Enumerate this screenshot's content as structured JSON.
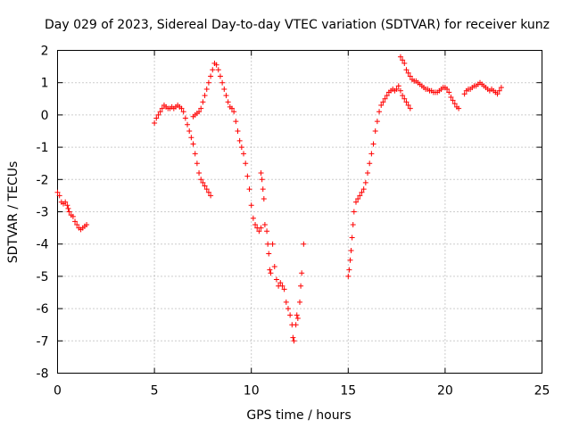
{
  "chart_data": {
    "type": "scatter",
    "title": "Day 029 of 2023, Sidereal Day-to-day VTEC variation (SDTVAR) for receiver kunz",
    "xlabel": "GPS time / hours",
    "ylabel": "SDTVAR / TECUs",
    "xlim": [
      0,
      25
    ],
    "ylim": [
      -8,
      2
    ],
    "xticks": [
      0,
      5,
      10,
      15,
      20,
      25
    ],
    "yticks": [
      -8,
      -7,
      -6,
      -5,
      -4,
      -3,
      -2,
      -1,
      0,
      1,
      2
    ],
    "grid": true,
    "marker": "plus",
    "color": "#ff0000",
    "series": [
      {
        "points": [
          [
            0.0,
            -2.4
          ],
          [
            0.1,
            -2.5
          ],
          [
            0.2,
            -2.7
          ],
          [
            0.3,
            -2.75
          ],
          [
            0.4,
            -2.7
          ],
          [
            0.5,
            -2.8
          ],
          [
            0.55,
            -2.9
          ],
          [
            0.6,
            -3.0
          ],
          [
            0.7,
            -3.1
          ],
          [
            0.8,
            -3.15
          ],
          [
            0.9,
            -3.3
          ],
          [
            1.0,
            -3.4
          ],
          [
            1.1,
            -3.5
          ],
          [
            1.2,
            -3.55
          ],
          [
            1.3,
            -3.5
          ],
          [
            1.4,
            -3.45
          ],
          [
            1.5,
            -3.4
          ],
          [
            5.0,
            -0.25
          ],
          [
            5.1,
            -0.1
          ],
          [
            5.2,
            0.0
          ],
          [
            5.3,
            0.1
          ],
          [
            5.4,
            0.2
          ],
          [
            5.5,
            0.3
          ],
          [
            5.6,
            0.25
          ],
          [
            5.7,
            0.2
          ],
          [
            5.8,
            0.2
          ],
          [
            5.9,
            0.25
          ],
          [
            6.0,
            0.2
          ],
          [
            6.1,
            0.25
          ],
          [
            6.2,
            0.3
          ],
          [
            6.3,
            0.25
          ],
          [
            6.4,
            0.2
          ],
          [
            6.5,
            0.1
          ],
          [
            6.6,
            -0.1
          ],
          [
            6.7,
            -0.3
          ],
          [
            6.8,
            -0.5
          ],
          [
            6.9,
            -0.7
          ],
          [
            7.0,
            -0.9
          ],
          [
            7.1,
            -1.2
          ],
          [
            7.2,
            -1.5
          ],
          [
            7.3,
            -1.8
          ],
          [
            7.4,
            -2.0
          ],
          [
            7.5,
            -2.1
          ],
          [
            7.6,
            -2.2
          ],
          [
            7.7,
            -2.3
          ],
          [
            7.8,
            -2.4
          ],
          [
            7.9,
            -2.5
          ],
          [
            7.0,
            -0.05
          ],
          [
            7.1,
            0.0
          ],
          [
            7.2,
            0.05
          ],
          [
            7.3,
            0.1
          ],
          [
            7.4,
            0.2
          ],
          [
            7.5,
            0.4
          ],
          [
            7.6,
            0.6
          ],
          [
            7.7,
            0.8
          ],
          [
            7.8,
            1.0
          ],
          [
            7.9,
            1.2
          ],
          [
            8.0,
            1.4
          ],
          [
            8.1,
            1.6
          ],
          [
            8.2,
            1.55
          ],
          [
            8.3,
            1.4
          ],
          [
            8.4,
            1.2
          ],
          [
            8.5,
            1.0
          ],
          [
            8.6,
            0.8
          ],
          [
            8.7,
            0.6
          ],
          [
            8.8,
            0.4
          ],
          [
            8.9,
            0.25
          ],
          [
            9.0,
            0.2
          ],
          [
            9.1,
            0.1
          ],
          [
            9.2,
            -0.2
          ],
          [
            9.3,
            -0.5
          ],
          [
            9.4,
            -0.8
          ],
          [
            9.5,
            -1.0
          ],
          [
            9.6,
            -1.2
          ],
          [
            9.7,
            -1.5
          ],
          [
            9.8,
            -1.9
          ],
          [
            9.9,
            -2.3
          ],
          [
            10.0,
            -2.8
          ],
          [
            10.1,
            -3.2
          ],
          [
            10.2,
            -3.4
          ],
          [
            10.3,
            -3.5
          ],
          [
            10.4,
            -3.6
          ],
          [
            10.5,
            -3.5
          ],
          [
            10.5,
            -1.8
          ],
          [
            10.55,
            -2.0
          ],
          [
            10.6,
            -2.3
          ],
          [
            10.65,
            -2.6
          ],
          [
            10.7,
            -3.4
          ],
          [
            10.8,
            -3.6
          ],
          [
            10.85,
            -4.0
          ],
          [
            10.9,
            -4.3
          ],
          [
            10.95,
            -4.8
          ],
          [
            11.0,
            -4.9
          ],
          [
            11.1,
            -4.0
          ],
          [
            11.2,
            -4.7
          ],
          [
            11.3,
            -5.1
          ],
          [
            11.4,
            -5.3
          ],
          [
            11.5,
            -5.2
          ],
          [
            11.6,
            -5.3
          ],
          [
            11.7,
            -5.4
          ],
          [
            11.8,
            -5.8
          ],
          [
            11.9,
            -6.0
          ],
          [
            12.0,
            -6.2
          ],
          [
            12.1,
            -6.5
          ],
          [
            12.15,
            -6.9
          ],
          [
            12.2,
            -7.0
          ],
          [
            12.3,
            -6.5
          ],
          [
            12.35,
            -6.2
          ],
          [
            12.4,
            -6.3
          ],
          [
            12.5,
            -5.8
          ],
          [
            12.55,
            -5.3
          ],
          [
            12.6,
            -4.9
          ],
          [
            12.7,
            -4.0
          ],
          [
            15.0,
            -5.0
          ],
          [
            15.05,
            -4.8
          ],
          [
            15.1,
            -4.5
          ],
          [
            15.15,
            -4.2
          ],
          [
            15.2,
            -3.8
          ],
          [
            15.25,
            -3.4
          ],
          [
            15.3,
            -3.0
          ],
          [
            15.4,
            -2.7
          ],
          [
            15.5,
            -2.6
          ],
          [
            15.6,
            -2.5
          ],
          [
            15.7,
            -2.4
          ],
          [
            15.8,
            -2.3
          ],
          [
            15.9,
            -2.1
          ],
          [
            16.0,
            -1.8
          ],
          [
            16.1,
            -1.5
          ],
          [
            16.2,
            -1.2
          ],
          [
            16.3,
            -0.9
          ],
          [
            16.4,
            -0.5
          ],
          [
            16.5,
            -0.2
          ],
          [
            16.6,
            0.1
          ],
          [
            16.7,
            0.3
          ],
          [
            16.8,
            0.4
          ],
          [
            16.9,
            0.5
          ],
          [
            17.0,
            0.6
          ],
          [
            17.1,
            0.7
          ],
          [
            17.2,
            0.75
          ],
          [
            17.3,
            0.8
          ],
          [
            17.4,
            0.75
          ],
          [
            17.5,
            0.8
          ],
          [
            17.6,
            0.9
          ],
          [
            17.7,
            0.75
          ],
          [
            17.8,
            0.6
          ],
          [
            17.9,
            0.5
          ],
          [
            18.0,
            0.4
          ],
          [
            18.1,
            0.3
          ],
          [
            18.2,
            0.2
          ],
          [
            17.7,
            1.8
          ],
          [
            17.8,
            1.7
          ],
          [
            17.9,
            1.6
          ],
          [
            18.0,
            1.4
          ],
          [
            18.1,
            1.3
          ],
          [
            18.2,
            1.2
          ],
          [
            18.3,
            1.1
          ],
          [
            18.4,
            1.05
          ],
          [
            18.5,
            1.05
          ],
          [
            18.6,
            1.0
          ],
          [
            18.7,
            0.95
          ],
          [
            18.8,
            0.9
          ],
          [
            18.9,
            0.85
          ],
          [
            19.0,
            0.8
          ],
          [
            19.1,
            0.8
          ],
          [
            19.2,
            0.75
          ],
          [
            19.3,
            0.75
          ],
          [
            19.4,
            0.7
          ],
          [
            19.5,
            0.7
          ],
          [
            19.6,
            0.7
          ],
          [
            19.7,
            0.75
          ],
          [
            19.8,
            0.8
          ],
          [
            19.9,
            0.85
          ],
          [
            20.0,
            0.85
          ],
          [
            20.1,
            0.8
          ],
          [
            20.2,
            0.7
          ],
          [
            20.3,
            0.55
          ],
          [
            20.4,
            0.45
          ],
          [
            20.5,
            0.35
          ],
          [
            20.6,
            0.25
          ],
          [
            20.7,
            0.2
          ],
          [
            21.0,
            0.65
          ],
          [
            21.1,
            0.75
          ],
          [
            21.2,
            0.8
          ],
          [
            21.3,
            0.8
          ],
          [
            21.4,
            0.85
          ],
          [
            21.5,
            0.9
          ],
          [
            21.6,
            0.9
          ],
          [
            21.7,
            0.95
          ],
          [
            21.8,
            1.0
          ],
          [
            21.9,
            0.95
          ],
          [
            22.0,
            0.9
          ],
          [
            22.1,
            0.85
          ],
          [
            22.2,
            0.8
          ],
          [
            22.3,
            0.75
          ],
          [
            22.4,
            0.8
          ],
          [
            22.5,
            0.75
          ],
          [
            22.6,
            0.7
          ],
          [
            22.7,
            0.65
          ],
          [
            22.8,
            0.75
          ],
          [
            22.9,
            0.85
          ]
        ]
      }
    ]
  }
}
